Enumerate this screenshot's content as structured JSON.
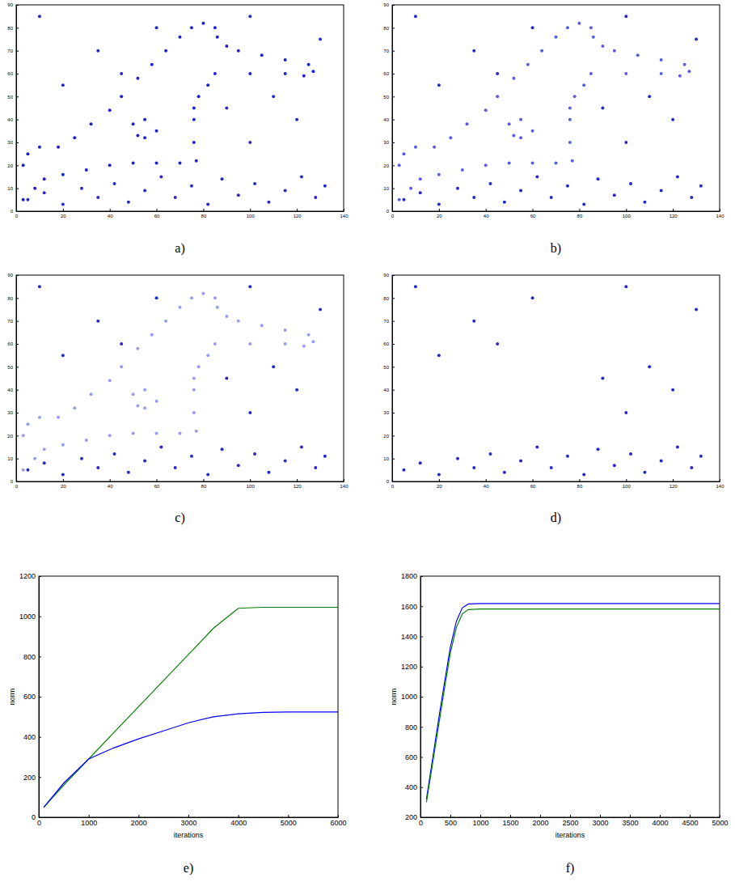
{
  "chart_data": [
    {
      "type": "scatter",
      "caption": "a)",
      "xlim": [
        0,
        140
      ],
      "ylim": [
        0,
        90
      ],
      "xticks": [
        0,
        20,
        40,
        60,
        80,
        100,
        120,
        140
      ],
      "yticks": [
        0,
        10,
        20,
        30,
        40,
        50,
        60,
        70,
        80,
        90
      ],
      "marker": "point",
      "series": [
        {
          "color": "#1f1fd0",
          "x": [
            3,
            3,
            5,
            10,
            18,
            25,
            32,
            40,
            45,
            52,
            58,
            64,
            70,
            75,
            80,
            85,
            86,
            90,
            95,
            105,
            115,
            125,
            127,
            123,
            115,
            100,
            85,
            82,
            78,
            76,
            76,
            76,
            77,
            70,
            60,
            50,
            40,
            30,
            20,
            12,
            8
          ],
          "values": [
            5,
            20,
            25,
            28,
            28,
            32,
            38,
            44,
            50,
            58,
            64,
            70,
            76,
            80,
            82,
            80,
            76,
            72,
            70,
            68,
            66,
            64,
            61,
            59,
            60,
            60,
            60,
            55,
            50,
            45,
            40,
            30,
            22,
            21,
            21,
            21,
            20,
            18,
            16,
            14,
            10
          ]
        },
        {
          "color": "#1f1fd0",
          "x": [
            50,
            55,
            60,
            55,
            52
          ],
          "values": [
            38,
            40,
            35,
            32,
            33
          ]
        },
        {
          "color": "#2828c8",
          "x": [
            5,
            12,
            20,
            28,
            35,
            42,
            48,
            55,
            62,
            68,
            75,
            82,
            88,
            95,
            102,
            108,
            115,
            122,
            128,
            132,
            10,
            35,
            60,
            100,
            120,
            130,
            20,
            100,
            110,
            45,
            90
          ],
          "values": [
            5,
            8,
            3,
            10,
            6,
            12,
            4,
            9,
            15,
            6,
            11,
            3,
            14,
            7,
            12,
            4,
            9,
            15,
            6,
            11,
            85,
            70,
            80,
            85,
            40,
            75,
            55,
            30,
            50,
            60,
            45
          ]
        }
      ]
    },
    {
      "type": "scatter",
      "caption": "b)",
      "xlim": [
        0,
        140
      ],
      "ylim": [
        0,
        90
      ],
      "xticks": [
        0,
        20,
        40,
        60,
        80,
        100,
        120,
        140
      ],
      "yticks": [
        0,
        10,
        20,
        30,
        40,
        50,
        60,
        70,
        80,
        90
      ],
      "marker": "point",
      "series": [
        {
          "color": "#5a5ae6",
          "x": [
            3,
            3,
            5,
            10,
            18,
            25,
            32,
            40,
            45,
            52,
            58,
            64,
            70,
            75,
            80,
            85,
            86,
            90,
            95,
            105,
            115,
            125,
            127,
            123,
            115,
            100,
            85,
            82,
            78,
            76,
            76,
            76,
            77,
            70,
            60,
            50,
            40,
            30,
            20,
            12,
            8
          ],
          "values": [
            5,
            20,
            25,
            28,
            28,
            32,
            38,
            44,
            50,
            58,
            64,
            70,
            76,
            80,
            82,
            80,
            76,
            72,
            70,
            68,
            66,
            64,
            61,
            59,
            60,
            60,
            60,
            55,
            50,
            45,
            40,
            30,
            22,
            21,
            21,
            21,
            20,
            18,
            16,
            14,
            10
          ]
        },
        {
          "color": "#5a5ae6",
          "x": [
            50,
            55,
            60,
            55,
            52
          ],
          "values": [
            38,
            40,
            35,
            32,
            33
          ]
        },
        {
          "color": "#2828c8",
          "x": [
            5,
            12,
            20,
            28,
            35,
            42,
            48,
            55,
            62,
            68,
            75,
            82,
            88,
            95,
            102,
            108,
            115,
            122,
            128,
            132,
            10,
            35,
            60,
            100,
            120,
            130,
            20,
            100,
            110,
            45,
            90
          ],
          "values": [
            5,
            8,
            3,
            10,
            6,
            12,
            4,
            9,
            15,
            6,
            11,
            3,
            14,
            7,
            12,
            4,
            9,
            15,
            6,
            11,
            85,
            70,
            80,
            85,
            40,
            75,
            55,
            30,
            50,
            60,
            45
          ]
        }
      ]
    },
    {
      "type": "scatter",
      "caption": "c)",
      "xlim": [
        0,
        140
      ],
      "ylim": [
        0,
        90
      ],
      "xticks": [
        0,
        20,
        40,
        60,
        80,
        100,
        120,
        140
      ],
      "yticks": [
        0,
        10,
        20,
        30,
        40,
        50,
        60,
        70,
        80,
        90
      ],
      "marker": "point",
      "series": [
        {
          "color": "#9a9af0",
          "x": [
            3,
            3,
            5,
            10,
            18,
            25,
            32,
            40,
            45,
            52,
            58,
            64,
            70,
            75,
            80,
            85,
            86,
            90,
            95,
            105,
            115,
            125,
            127,
            123,
            115,
            100,
            85,
            82,
            78,
            76,
            76,
            76,
            77,
            70,
            60,
            50,
            40,
            30,
            20,
            12,
            8
          ],
          "values": [
            5,
            20,
            25,
            28,
            28,
            32,
            38,
            44,
            50,
            58,
            64,
            70,
            76,
            80,
            82,
            80,
            76,
            72,
            70,
            68,
            66,
            64,
            61,
            59,
            60,
            60,
            60,
            55,
            50,
            45,
            40,
            30,
            22,
            21,
            21,
            21,
            20,
            18,
            16,
            14,
            10
          ]
        },
        {
          "color": "#9a9af0",
          "x": [
            50,
            55,
            60,
            55,
            52
          ],
          "values": [
            38,
            40,
            35,
            32,
            33
          ]
        },
        {
          "color": "#2828c8",
          "x": [
            5,
            12,
            20,
            28,
            35,
            42,
            48,
            55,
            62,
            68,
            75,
            82,
            88,
            95,
            102,
            108,
            115,
            122,
            128,
            132,
            10,
            35,
            60,
            100,
            120,
            130,
            20,
            100,
            110,
            45,
            90
          ],
          "values": [
            5,
            8,
            3,
            10,
            6,
            12,
            4,
            9,
            15,
            6,
            11,
            3,
            14,
            7,
            12,
            4,
            9,
            15,
            6,
            11,
            85,
            70,
            80,
            85,
            40,
            75,
            55,
            30,
            50,
            60,
            45
          ]
        }
      ]
    },
    {
      "type": "scatter",
      "caption": "d)",
      "xlim": [
        0,
        140
      ],
      "ylim": [
        0,
        90
      ],
      "xticks": [
        0,
        20,
        40,
        60,
        80,
        100,
        120,
        140
      ],
      "yticks": [
        0,
        10,
        20,
        30,
        40,
        50,
        60,
        70,
        80,
        90
      ],
      "marker": "point",
      "series": [
        {
          "color": "#2828c8",
          "x": [
            5,
            12,
            20,
            28,
            35,
            42,
            48,
            55,
            62,
            68,
            75,
            82,
            88,
            95,
            102,
            108,
            115,
            122,
            128,
            132,
            10,
            35,
            60,
            100,
            120,
            130,
            20,
            100,
            110,
            45,
            90
          ],
          "values": [
            5,
            8,
            3,
            10,
            6,
            12,
            4,
            9,
            15,
            6,
            11,
            3,
            14,
            7,
            12,
            4,
            9,
            15,
            6,
            11,
            85,
            70,
            80,
            85,
            40,
            75,
            55,
            30,
            50,
            60,
            45
          ]
        }
      ]
    },
    {
      "type": "line",
      "caption": "e)",
      "x_label": "iterations",
      "y_label": "norm",
      "xlim": [
        0,
        6000
      ],
      "ylim": [
        0,
        1200
      ],
      "xticks": [
        0,
        1000,
        2000,
        3000,
        4000,
        5000,
        6000
      ],
      "yticks": [
        0,
        200,
        400,
        600,
        800,
        1000,
        1200
      ],
      "x": [
        100,
        500,
        1000,
        1500,
        2000,
        2500,
        3000,
        3500,
        4000,
        4500,
        5000,
        6000
      ],
      "series": [
        {
          "color": "#008000",
          "values": [
            50,
            160,
            290,
            420,
            550,
            680,
            810,
            940,
            1040,
            1045,
            1045,
            1045
          ]
        },
        {
          "color": "#0000ff",
          "values": [
            50,
            170,
            290,
            345,
            390,
            430,
            470,
            500,
            515,
            522,
            524,
            524
          ]
        }
      ]
    },
    {
      "type": "line",
      "caption": "f)",
      "x_label": "iterations",
      "y_label": "norm",
      "xlim": [
        0,
        5000
      ],
      "ylim": [
        200,
        1800
      ],
      "xticks": [
        0,
        500,
        1000,
        1500,
        2000,
        2500,
        3000,
        3500,
        4000,
        4500,
        5000
      ],
      "yticks": [
        200,
        400,
        600,
        800,
        1000,
        1200,
        1400,
        1600,
        1800
      ],
      "x": [
        100,
        200,
        300,
        400,
        500,
        600,
        700,
        800,
        1000,
        2000,
        5000
      ],
      "series": [
        {
          "color": "#0000ff",
          "values": [
            320,
            580,
            840,
            1090,
            1330,
            1500,
            1590,
            1615,
            1618,
            1618,
            1618
          ]
        },
        {
          "color": "#008000",
          "values": [
            300,
            550,
            800,
            1050,
            1290,
            1460,
            1550,
            1578,
            1582,
            1582,
            1582
          ]
        }
      ]
    }
  ]
}
